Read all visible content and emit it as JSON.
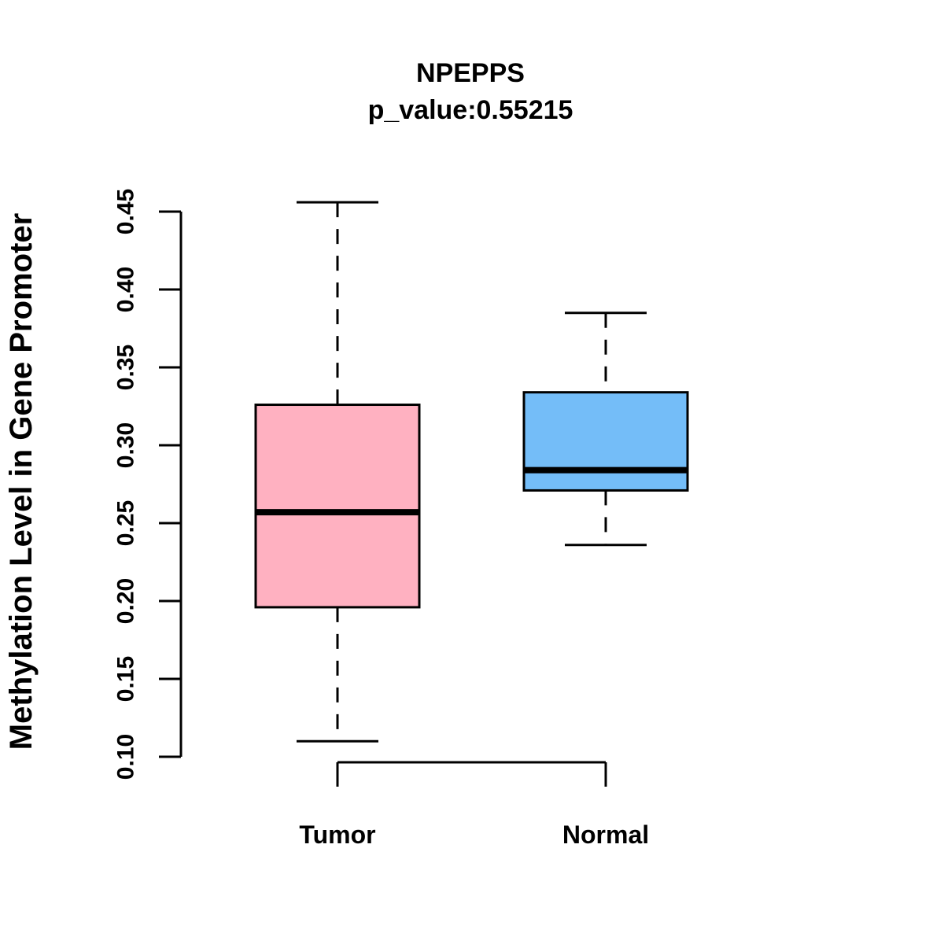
{
  "chart_data": {
    "type": "boxplot",
    "title": "NPEPPS",
    "subtitle": "p_value:0.55215",
    "ylabel": "Methylation Level in Gene Promoter",
    "xlabel": "",
    "categories": [
      "Tumor",
      "Normal"
    ],
    "y_ticks": [
      0.1,
      0.15,
      0.2,
      0.25,
      0.3,
      0.35,
      0.4,
      0.45
    ],
    "y_tick_labels": [
      "0.10",
      "0.15",
      "0.20",
      "0.25",
      "0.30",
      "0.35",
      "0.40",
      "0.45"
    ],
    "ylim": [
      0.1,
      0.46
    ],
    "grid": false,
    "legend": "none",
    "series": [
      {
        "name": "Tumor",
        "color": "#FFB1C1",
        "whisker_low": 0.11,
        "q1": 0.196,
        "median": 0.257,
        "q3": 0.326,
        "whisker_high": 0.456
      },
      {
        "name": "Normal",
        "color": "#74BDF8",
        "whisker_low": 0.236,
        "q1": 0.271,
        "median": 0.284,
        "q3": 0.334,
        "whisker_high": 0.385
      }
    ]
  },
  "colors": {
    "background": "#FFFFFF",
    "line": "#000000",
    "tumor_fill": "#FFB1C1",
    "normal_fill": "#74BDF8"
  }
}
